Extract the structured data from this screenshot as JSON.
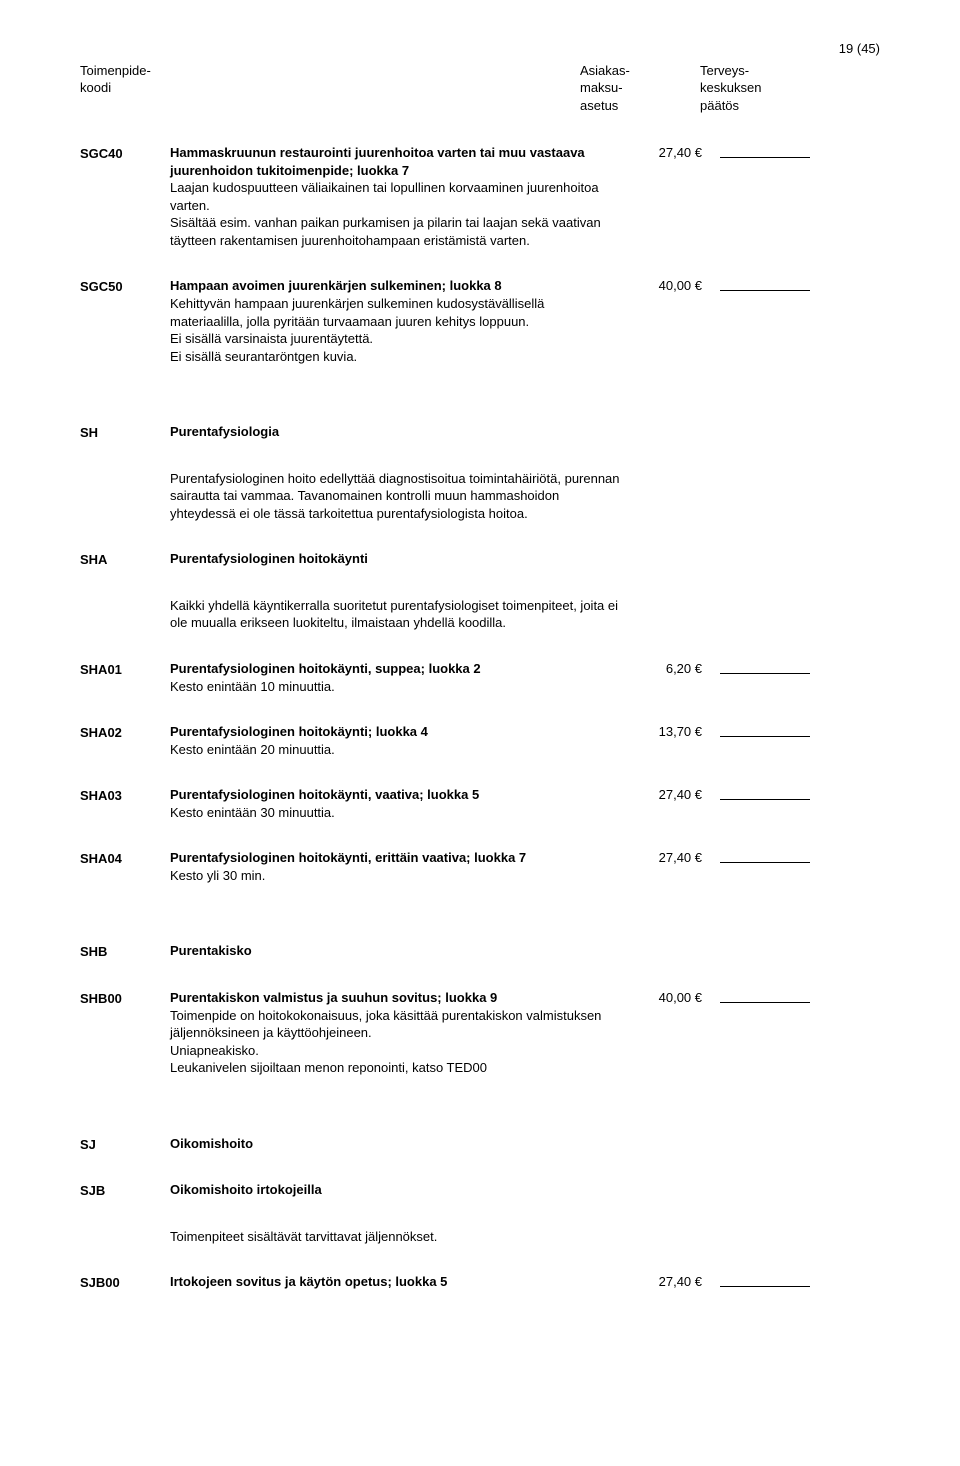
{
  "pageNumber": "19 (45)",
  "header": {
    "left1": "Toimenpide-",
    "left2": "koodi",
    "mid1": "Asiakas-",
    "mid2": "maksu-",
    "mid3": "asetus",
    "right1": "Terveys-",
    "right2": "keskuksen",
    "right3": "päätös"
  },
  "rows": [
    {
      "code": "SGC40",
      "title": "Hammaskruunun restaurointi juurenhoitoa varten tai muu vastaava juurenhoidon tukitoimenpide; luokka 7",
      "desc": "Laajan kudospuutteen väliaikainen tai lopullinen korvaaminen juurenhoitoa varten.\nSisältää esim. vanhan paikan purkamisen ja pilarin tai laajan sekä vaativan täytteen rakentamisen juurenhoitohampaan eristämistä varten.",
      "price": "27,40 €",
      "hasBlank": true
    },
    {
      "code": "SGC50",
      "title": "Hampaan avoimen juurenkärjen sulkeminen; luokka 8",
      "desc": "Kehittyvän hampaan juurenkärjen sulkeminen kudosystävällisellä materiaalilla, jolla pyritään turvaamaan juuren kehitys loppuun.\nEi sisällä varsinaista juurentäytettä.\nEi sisällä seurantaröntgen kuvia.",
      "price": "40,00 €",
      "hasBlank": true
    },
    {
      "gap": true
    },
    {
      "code": "SH",
      "title": "Purentafysiologia",
      "desc": "",
      "price": "",
      "hasBlank": false
    },
    {
      "code": "",
      "title": "",
      "desc": "Purentafysiologinen hoito edellyttää diagnostisoitua toimintahäiriötä, purennan sairautta tai vammaa. Tavanomainen kontrolli muun hammashoidon yhteydessä ei ole tässä tarkoitettua purentafysiologista hoitoa.",
      "price": "",
      "hasBlank": false
    },
    {
      "code": "SHA",
      "title": "Purentafysiologinen hoitokäynti",
      "desc": "",
      "price": "",
      "hasBlank": false
    },
    {
      "code": "",
      "title": "",
      "desc": "Kaikki yhdellä käyntikerralla suoritetut purentafysiologiset toimenpiteet, joita ei ole muualla erikseen luokiteltu, ilmaistaan yhdellä koodilla.",
      "price": "",
      "hasBlank": false
    },
    {
      "code": "SHA01",
      "title": "Purentafysiologinen hoitokäynti, suppea; luokka 2",
      "desc": "Kesto enintään 10 minuuttia.",
      "price": "6,20 €",
      "hasBlank": true
    },
    {
      "code": "SHA02",
      "title": "Purentafysiologinen hoitokäynti; luokka 4",
      "desc": "Kesto enintään 20 minuuttia.",
      "price": "13,70 €",
      "hasBlank": true
    },
    {
      "code": "SHA03",
      "title": "Purentafysiologinen hoitokäynti, vaativa; luokka 5",
      "desc": "Kesto enintään 30 minuuttia.",
      "price": "27,40 €",
      "hasBlank": true
    },
    {
      "code": "SHA04",
      "title": "Purentafysiologinen hoitokäynti, erittäin vaativa; luokka 7",
      "desc": "Kesto yli 30 min.",
      "price": "27,40 €",
      "hasBlank": true
    },
    {
      "gap": true
    },
    {
      "code": "SHB",
      "title": "Purentakisko",
      "desc": "",
      "price": "",
      "hasBlank": false
    },
    {
      "code": "SHB00",
      "title": "Purentakiskon valmistus ja suuhun sovitus; luokka 9",
      "desc": "Toimenpide on hoitokokonaisuus, joka käsittää purentakiskon valmistuksen jäljennöksineen ja käyttöohjeineen.\nUniapneakisko.\nLeukanivelen sijoiltaan menon reponointi, katso TED00",
      "price": "40,00 €",
      "hasBlank": true
    },
    {
      "gap": true
    },
    {
      "code": "SJ",
      "title": "Oikomishoito",
      "desc": "",
      "price": "",
      "hasBlank": false
    },
    {
      "code": "SJB",
      "title": "Oikomishoito irtokojeilla",
      "desc": "",
      "price": "",
      "hasBlank": false
    },
    {
      "code": "",
      "title": "",
      "desc": "Toimenpiteet sisältävät tarvittavat jäljennökset.",
      "price": "",
      "hasBlank": false
    },
    {
      "code": "SJB00",
      "title": "Irtokojeen sovitus ja käytön opetus; luokka 5",
      "desc": "",
      "price": "27,40 €",
      "hasBlank": true
    }
  ]
}
